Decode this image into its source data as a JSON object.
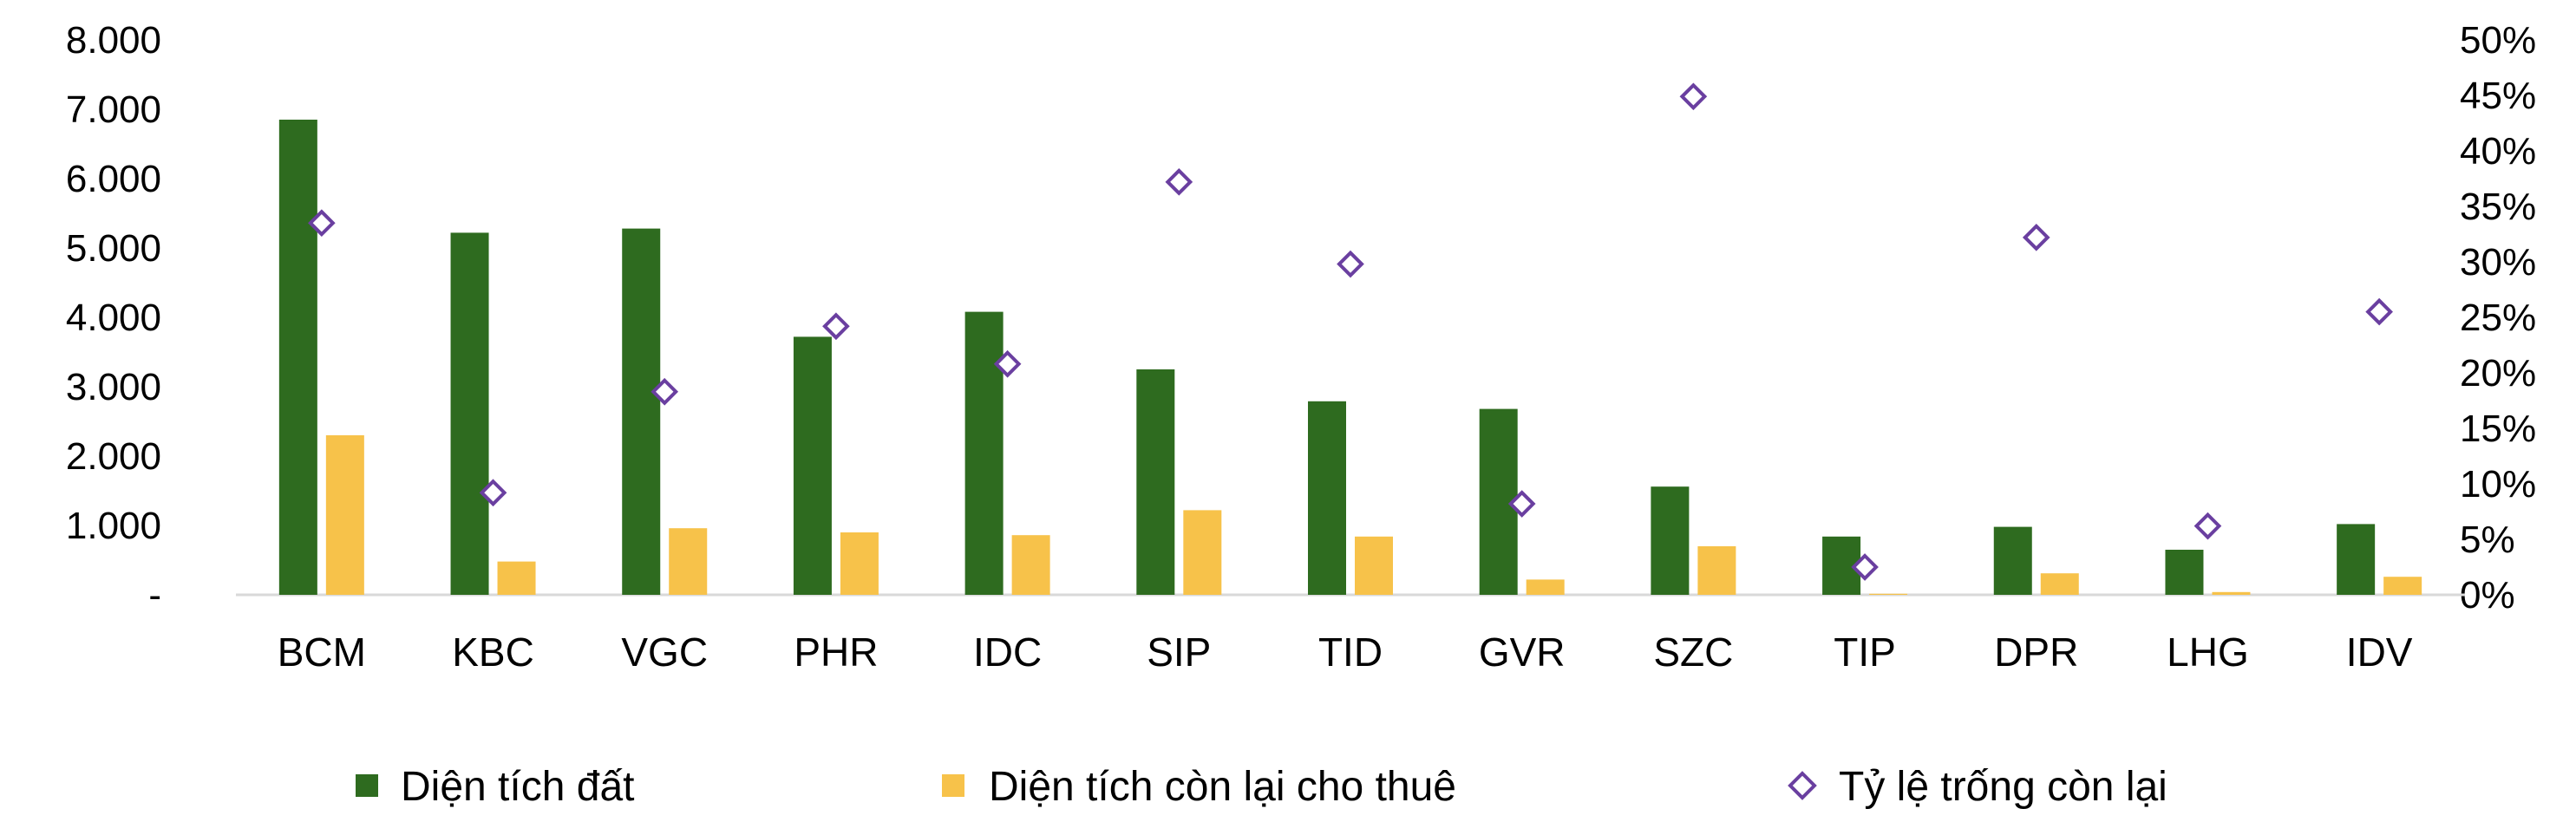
{
  "chart_data": {
    "type": "bar",
    "categories": [
      "BCM",
      "KBC",
      "VGC",
      "PHR",
      "IDC",
      "SIP",
      "TID",
      "GVR",
      "SZC",
      "TIP",
      "DPR",
      "LHG",
      "IDV"
    ],
    "series": [
      {
        "name": "Diện tích đất",
        "type": "bar",
        "axis": "left",
        "color": "#2E6B1F",
        "values": [
          6850,
          5220,
          5280,
          3720,
          4080,
          3250,
          2790,
          2680,
          1560,
          840,
          980,
          650,
          1020
        ]
      },
      {
        "name": "Diện tích còn lại cho thuê",
        "type": "bar",
        "axis": "left",
        "color": "#F7C24A",
        "values": [
          2300,
          480,
          960,
          900,
          860,
          1220,
          840,
          220,
          700,
          15,
          310,
          40,
          260
        ]
      },
      {
        "name": "Tỷ lệ trống còn lại",
        "type": "scatter",
        "axis": "right",
        "marker": "diamond",
        "color": "#6A3FA0",
        "values": [
          0.335,
          0.092,
          0.183,
          0.242,
          0.208,
          0.372,
          0.298,
          0.082,
          0.449,
          0.025,
          0.322,
          0.062,
          0.255
        ]
      }
    ],
    "y_left": {
      "ylim": [
        0,
        8000
      ],
      "ticks": [
        0,
        1000,
        2000,
        3000,
        4000,
        5000,
        6000,
        7000,
        8000
      ],
      "tick_labels": [
        "-",
        "1.000",
        "2.000",
        "3.000",
        "4.000",
        "5.000",
        "6.000",
        "7.000",
        "8.000"
      ]
    },
    "y_right": {
      "ylim": [
        0,
        0.5
      ],
      "ticks": [
        0,
        0.05,
        0.1,
        0.15,
        0.2,
        0.25,
        0.3,
        0.35,
        0.4,
        0.45,
        0.5
      ],
      "tick_labels": [
        "0%",
        "5%",
        "10%",
        "15%",
        "20%",
        "25%",
        "30%",
        "35%",
        "40%",
        "45%",
        "50%"
      ]
    },
    "legend": {
      "placement": "bottom",
      "items": [
        "Diện tích đất",
        "Diện tích còn lại cho thuê",
        "Tỷ lệ trống còn lại"
      ]
    },
    "grid": false
  }
}
